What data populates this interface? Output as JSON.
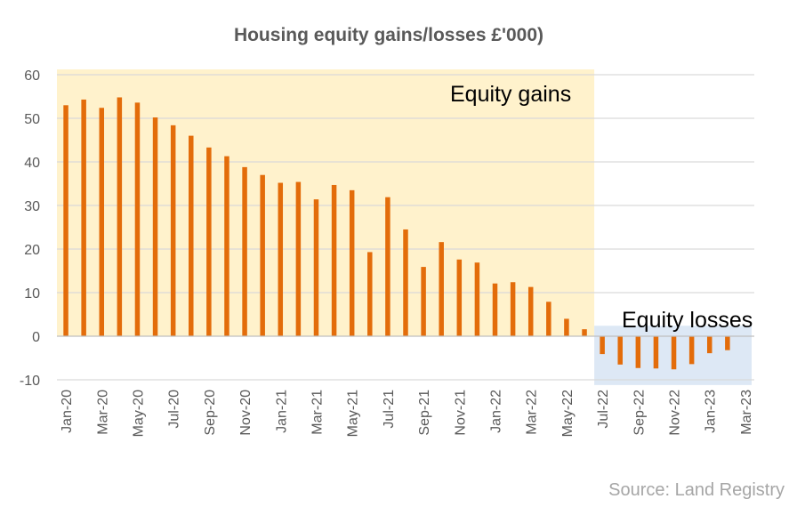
{
  "chart_data": {
    "type": "bar",
    "title": "Housing equity gains/losses £'000)",
    "source": "Source: Land Registry",
    "annotations": {
      "gains": "Equity gains",
      "losses": "Equity losses"
    },
    "ylim": [
      -10,
      60
    ],
    "yticks": [
      60,
      50,
      40,
      30,
      20,
      10,
      0,
      -10
    ],
    "grid": true,
    "bar_color": "#e36c0a",
    "gains_region_color": "#fff2cc",
    "losses_region_color": "#dde8f5",
    "categories": [
      "Jan-20",
      "Feb-20",
      "Mar-20",
      "Apr-20",
      "May-20",
      "Jun-20",
      "Jul-20",
      "Aug-20",
      "Sep-20",
      "Oct-20",
      "Nov-20",
      "Dec-20",
      "Jan-21",
      "Feb-21",
      "Mar-21",
      "Apr-21",
      "May-21",
      "Jun-21",
      "Jul-21",
      "Aug-21",
      "Sep-21",
      "Oct-21",
      "Nov-21",
      "Dec-21",
      "Jan-22",
      "Feb-22",
      "Mar-22",
      "Apr-22",
      "May-22",
      "Jun-22",
      "Jul-22",
      "Aug-22",
      "Sep-22",
      "Oct-22",
      "Nov-22",
      "Dec-22",
      "Jan-23",
      "Feb-23",
      "Mar-23"
    ],
    "xtick_labels": [
      "Jan-20",
      "Mar-20",
      "May-20",
      "Jul-20",
      "Sep-20",
      "Nov-20",
      "Jan-21",
      "Mar-21",
      "May-21",
      "Jul-21",
      "Sep-21",
      "Nov-21",
      "Jan-22",
      "Mar-22",
      "May-22",
      "Jul-22",
      "Sep-22",
      "Nov-22",
      "Jan-23",
      "Mar-23"
    ],
    "values": [
      53,
      54.3,
      52.4,
      54.8,
      53.6,
      50.2,
      48.4,
      46,
      43.3,
      41.3,
      38.8,
      37,
      35.2,
      35.4,
      31.4,
      34.7,
      33.5,
      19.3,
      31.9,
      24.5,
      15.9,
      21.6,
      17.6,
      16.9,
      12.1,
      12.4,
      11.3,
      7.9,
      4,
      1.6,
      -4.1,
      -6.5,
      -7.3,
      -7.4,
      -7.6,
      -6.4,
      -3.9,
      -3.2,
      null
    ]
  }
}
